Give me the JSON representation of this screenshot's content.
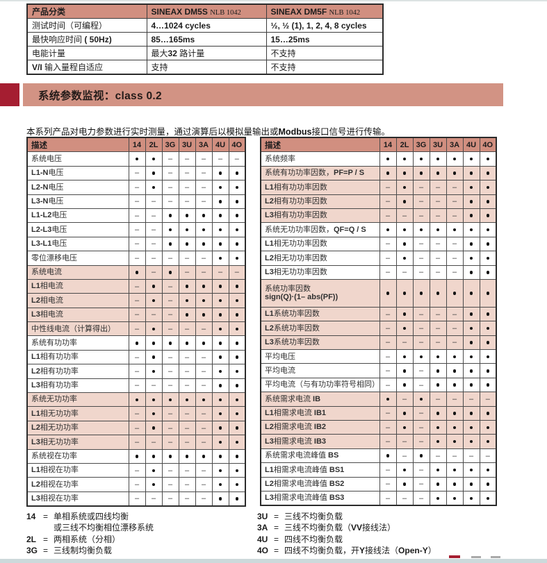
{
  "colors": {
    "header_salmon": "#d18f80",
    "bar_salmon": "#d29384",
    "row_shade": "#f0d6cc",
    "section_red": "#a51e31"
  },
  "product_table": {
    "col1_header": "产品分类",
    "col2_header": {
      "name": "SINEAX DM5S",
      "code": "NLB 1042"
    },
    "col3_header": {
      "name": "SINEAX DM5F",
      "code": "NLB 1042"
    },
    "rows": [
      {
        "label": "测试时间（可编程）",
        "dm5s": "4…1024 cycles",
        "dm5f": "½, ½ (1), 1, 2, 4, 8 cycles"
      },
      {
        "label": "最快响应时间 ( 50Hz)",
        "dm5s": "85…165ms",
        "dm5f": "15…25ms"
      },
      {
        "label": "电能计量",
        "dm5s": "最大32 路计量",
        "dm5f": "不支持"
      },
      {
        "label": "V/I 输入量程自适应",
        "dm5s": "支持",
        "dm5f": "不支持"
      }
    ]
  },
  "section": {
    "title": "系统参数监视：class 0.2"
  },
  "intro": "本系列产品对电力参数进行实时测量，通过演算后以模拟量输出或Modbus接口信号进行传输。",
  "desc_header": "描述",
  "matrix_columns": [
    "14",
    "2L",
    "3G",
    "3U",
    "3A",
    "4U",
    "4O"
  ],
  "left_table": {
    "rows": [
      {
        "label": "系统电压",
        "shaded": false,
        "values": [
          1,
          1,
          0,
          0,
          0,
          0,
          0
        ]
      },
      {
        "label": "L1-N电压",
        "shaded": false,
        "values": [
          0,
          1,
          0,
          0,
          0,
          1,
          1
        ]
      },
      {
        "label": "L2-N电压",
        "shaded": false,
        "values": [
          0,
          1,
          0,
          0,
          0,
          1,
          1
        ]
      },
      {
        "label": "L3-N电压",
        "shaded": false,
        "values": [
          0,
          0,
          0,
          0,
          0,
          1,
          1
        ]
      },
      {
        "label": "L1-L2电压",
        "shaded": false,
        "values": [
          0,
          0,
          1,
          1,
          1,
          1,
          1
        ]
      },
      {
        "label": "L2-L3电压",
        "shaded": false,
        "values": [
          0,
          0,
          1,
          1,
          1,
          1,
          1
        ]
      },
      {
        "label": "L3-L1电压",
        "shaded": false,
        "values": [
          0,
          0,
          1,
          1,
          1,
          1,
          1
        ]
      },
      {
        "label": "零位漂移电压",
        "shaded": false,
        "values": [
          0,
          0,
          0,
          0,
          0,
          1,
          1
        ]
      },
      {
        "label": "系统电流",
        "shaded": true,
        "values": [
          1,
          0,
          1,
          0,
          0,
          0,
          0
        ]
      },
      {
        "label": "L1相电流",
        "shaded": true,
        "values": [
          0,
          1,
          0,
          1,
          1,
          1,
          1
        ]
      },
      {
        "label": "L2相电流",
        "shaded": true,
        "values": [
          0,
          1,
          0,
          1,
          1,
          1,
          1
        ]
      },
      {
        "label": "L3相电流",
        "shaded": true,
        "values": [
          0,
          0,
          0,
          1,
          1,
          1,
          1
        ]
      },
      {
        "label": "中性线电流（计算得出）",
        "shaded": true,
        "values": [
          0,
          1,
          0,
          0,
          0,
          1,
          1
        ]
      },
      {
        "label": "系统有功功率",
        "shaded": false,
        "values": [
          1,
          1,
          1,
          1,
          1,
          1,
          1
        ]
      },
      {
        "label": "L1相有功功率",
        "shaded": false,
        "values": [
          0,
          1,
          0,
          0,
          0,
          1,
          1
        ]
      },
      {
        "label": "L2相有功功率",
        "shaded": false,
        "values": [
          0,
          1,
          0,
          0,
          0,
          1,
          1
        ]
      },
      {
        "label": "L3相有功功率",
        "shaded": false,
        "values": [
          0,
          0,
          0,
          0,
          0,
          1,
          1
        ]
      },
      {
        "label": "系统无功功率",
        "shaded": true,
        "values": [
          1,
          1,
          1,
          1,
          1,
          1,
          1
        ]
      },
      {
        "label": "L1相无功功率",
        "shaded": true,
        "values": [
          0,
          1,
          0,
          0,
          0,
          1,
          1
        ]
      },
      {
        "label": "L2相无功功率",
        "shaded": true,
        "values": [
          0,
          1,
          0,
          0,
          0,
          1,
          1
        ]
      },
      {
        "label": "L3相无功功率",
        "shaded": true,
        "values": [
          0,
          0,
          0,
          0,
          0,
          1,
          1
        ]
      },
      {
        "label": "系统视在功率",
        "shaded": false,
        "values": [
          1,
          1,
          1,
          1,
          1,
          1,
          1
        ]
      },
      {
        "label": "L1相视在功率",
        "shaded": false,
        "values": [
          0,
          1,
          0,
          0,
          0,
          1,
          1
        ]
      },
      {
        "label": "L2相视在功率",
        "shaded": false,
        "values": [
          0,
          1,
          0,
          0,
          0,
          1,
          1
        ]
      },
      {
        "label": "L3相视在功率",
        "shaded": false,
        "values": [
          0,
          0,
          0,
          0,
          0,
          1,
          1
        ]
      }
    ]
  },
  "right_table": {
    "rows": [
      {
        "label": "系统频率",
        "shaded": false,
        "values": [
          1,
          1,
          1,
          1,
          1,
          1,
          1
        ]
      },
      {
        "label": "系统有功功率因数，PF=P / S",
        "shaded": true,
        "values": [
          1,
          1,
          1,
          1,
          1,
          1,
          1
        ]
      },
      {
        "label": "L1相有功功率因数",
        "shaded": true,
        "values": [
          0,
          1,
          0,
          0,
          0,
          1,
          1
        ]
      },
      {
        "label": "L2相有功功率因数",
        "shaded": true,
        "values": [
          0,
          1,
          0,
          0,
          0,
          1,
          1
        ]
      },
      {
        "label": "L3相有功功率因数",
        "shaded": true,
        "values": [
          0,
          0,
          0,
          0,
          0,
          1,
          1
        ]
      },
      {
        "label": "系统无功功率因数，QF=Q / S",
        "shaded": false,
        "values": [
          1,
          1,
          1,
          1,
          1,
          1,
          1
        ]
      },
      {
        "label": "L1相无功功率因数",
        "shaded": false,
        "values": [
          0,
          1,
          0,
          0,
          0,
          1,
          1
        ]
      },
      {
        "label": "L2相无功功率因数",
        "shaded": false,
        "values": [
          0,
          1,
          0,
          0,
          0,
          1,
          1
        ]
      },
      {
        "label": "L3相无功功率因数",
        "shaded": false,
        "values": [
          0,
          0,
          0,
          0,
          0,
          1,
          1
        ]
      },
      {
        "label": "系统功率因数",
        "label2": "sign(Q)·(1– abs(PF))",
        "shaded": true,
        "values": [
          1,
          1,
          1,
          1,
          1,
          1,
          1
        ]
      },
      {
        "label": "L1系统功率因数",
        "shaded": true,
        "values": [
          0,
          1,
          0,
          0,
          0,
          1,
          1
        ]
      },
      {
        "label": "L2系统功率因数",
        "shaded": true,
        "values": [
          0,
          1,
          0,
          0,
          0,
          1,
          1
        ]
      },
      {
        "label": "L3系统功率因数",
        "shaded": true,
        "values": [
          0,
          0,
          0,
          0,
          0,
          1,
          1
        ]
      },
      {
        "label": "平均电压",
        "shaded": false,
        "values": [
          0,
          1,
          1,
          1,
          1,
          1,
          1
        ]
      },
      {
        "label": "平均电流",
        "shaded": false,
        "values": [
          0,
          1,
          0,
          1,
          1,
          1,
          1
        ]
      },
      {
        "label": "平均电流（与有功功率符号相同）",
        "shaded": false,
        "values": [
          0,
          1,
          0,
          1,
          1,
          1,
          1
        ]
      },
      {
        "label": "系统需求电流 IB",
        "shaded": true,
        "values": [
          1,
          0,
          1,
          0,
          0,
          0,
          0
        ]
      },
      {
        "label": "L1相需求电流 IB1",
        "shaded": true,
        "values": [
          0,
          1,
          0,
          1,
          1,
          1,
          1
        ]
      },
      {
        "label": "L2相需求电流 IB2",
        "shaded": true,
        "values": [
          0,
          1,
          0,
          1,
          1,
          1,
          1
        ]
      },
      {
        "label": "L3相需求电流 IB3",
        "shaded": true,
        "values": [
          0,
          0,
          0,
          1,
          1,
          1,
          1
        ]
      },
      {
        "label": "系统需求电流峰值 BS",
        "shaded": false,
        "values": [
          1,
          0,
          1,
          0,
          0,
          0,
          0
        ]
      },
      {
        "label": "L1相需求电流峰值 BS1",
        "shaded": false,
        "values": [
          0,
          1,
          0,
          1,
          1,
          1,
          1
        ]
      },
      {
        "label": "L2相需求电流峰值 BS2",
        "shaded": false,
        "values": [
          0,
          1,
          0,
          1,
          1,
          1,
          1
        ]
      },
      {
        "label": "L3相需求电流峰值 BS3",
        "shaded": false,
        "values": [
          0,
          0,
          0,
          1,
          1,
          1,
          1
        ]
      }
    ]
  },
  "legend": {
    "left": [
      {
        "key": "14",
        "text": "单相系统或四线均衡",
        "text2": "或三线不均衡相位漂移系统"
      },
      {
        "key": "2L",
        "text": "两相系统（分相）"
      },
      {
        "key": "3G",
        "text": "三线制均衡负载"
      }
    ],
    "right": [
      {
        "key": "3U",
        "text": "三线不均衡负载"
      },
      {
        "key": "3A",
        "text": "三线不均衡负载（VV接线法）"
      },
      {
        "key": "4U",
        "text": "四线不均衡负载"
      },
      {
        "key": "4O",
        "text": "四线不均衡负载，开Y接线法（Open-Y）"
      }
    ]
  },
  "symbols": {
    "dot": "•",
    "dash": "–"
  }
}
